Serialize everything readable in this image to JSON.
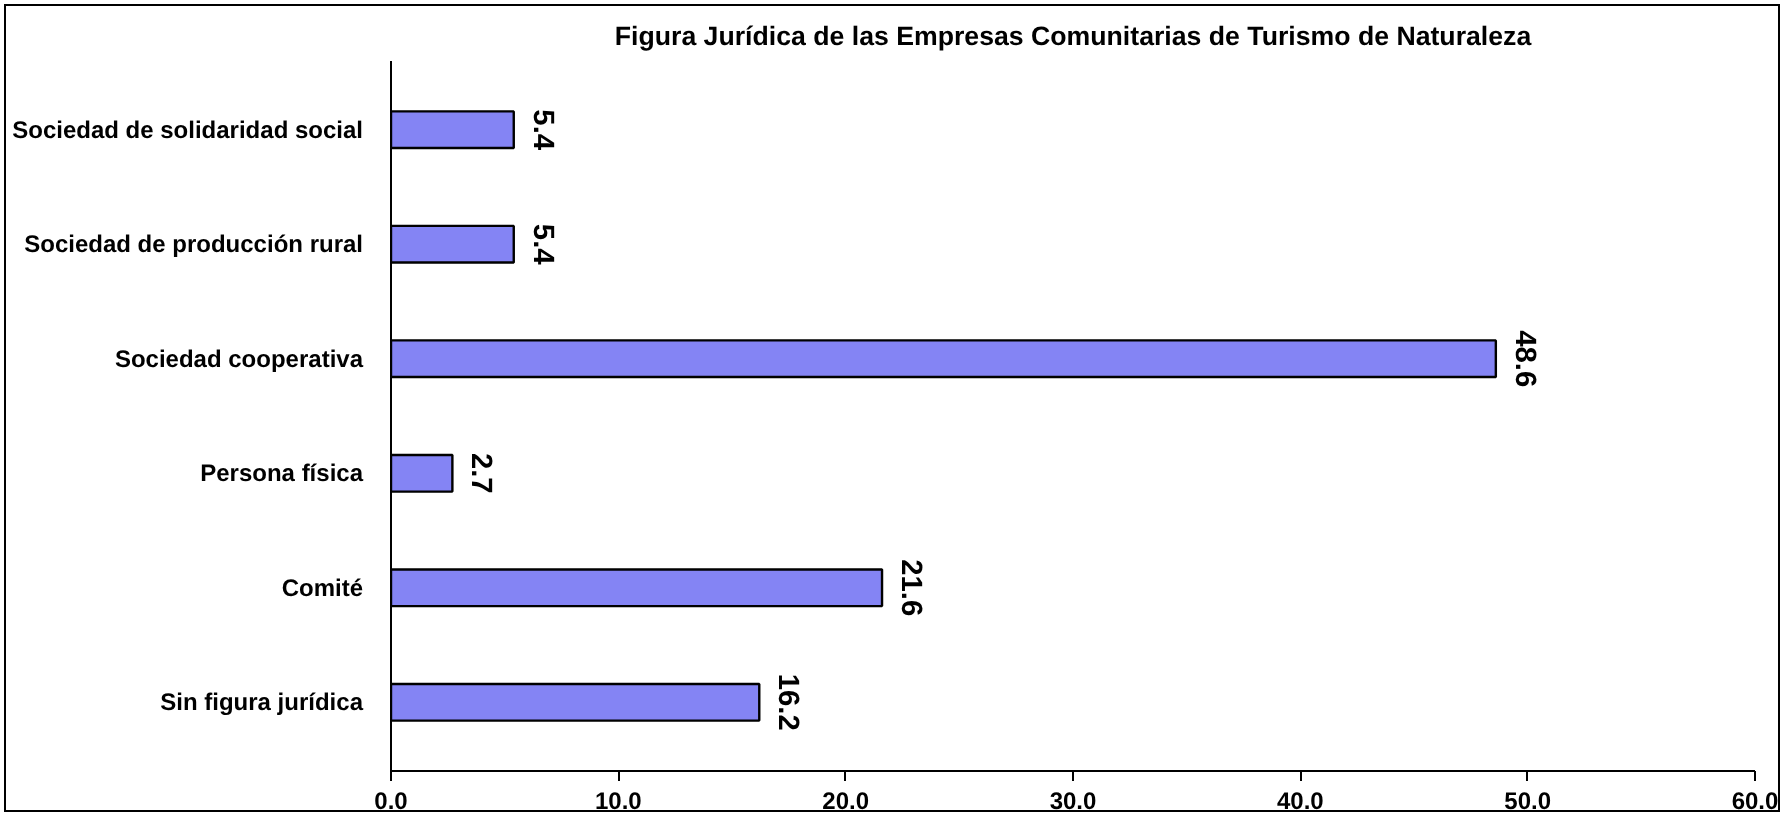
{
  "chart_data": {
    "type": "bar",
    "orientation": "horizontal",
    "title": "Figura Jurídica de las Empresas Comunitarias de Turismo de Naturaleza",
    "categories": [
      "Sociedad de solidaridad social",
      "Sociedad de producción rural",
      "Sociedad cooperativa",
      "Persona física",
      "Comité",
      "Sin figura jurídica"
    ],
    "values": [
      5.4,
      5.4,
      48.6,
      2.7,
      21.6,
      16.2
    ],
    "color": "#8484f4",
    "xlim": [
      0,
      60
    ],
    "xticks": [
      {
        "value": 0,
        "label": "0.0"
      },
      {
        "value": 10,
        "label": "10.0"
      },
      {
        "value": 20,
        "label": "20.0"
      },
      {
        "value": 30,
        "label": "30.0"
      },
      {
        "value": 40,
        "label": "40.0"
      },
      {
        "value": 50,
        "label": "50.0"
      },
      {
        "value": 60,
        "label": "60.0"
      }
    ],
    "data_labels": true,
    "grid": false
  }
}
